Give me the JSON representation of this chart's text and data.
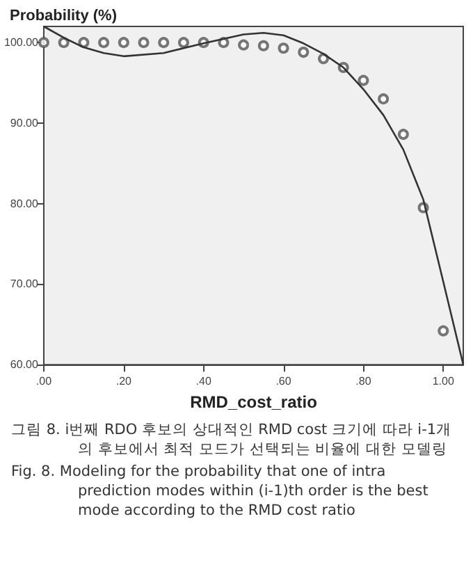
{
  "chart_data": {
    "type": "scatter",
    "ylabel": "Probability (%)",
    "xlabel": "RMD_cost_ratio",
    "xlim": [
      0,
      1.05
    ],
    "ylim": [
      60,
      102
    ],
    "xticks": [
      {
        "value": 0,
        "label": ".00"
      },
      {
        "value": 0.2,
        "label": ".20"
      },
      {
        "value": 0.4,
        "label": ".40"
      },
      {
        "value": 0.6,
        "label": ".60"
      },
      {
        "value": 0.8,
        "label": ".80"
      },
      {
        "value": 1,
        "label": "1.00"
      }
    ],
    "yticks": [
      {
        "value": 60,
        "label": "60.00"
      },
      {
        "value": 70,
        "label": "70.00"
      },
      {
        "value": 80,
        "label": "80.00"
      },
      {
        "value": 90,
        "label": "90.00"
      },
      {
        "value": 100,
        "label": "100.00"
      }
    ],
    "grid": false,
    "marker": "circle",
    "series": [
      {
        "color": "#555555",
        "x": [
          0,
          0.05,
          0.1,
          0.15,
          0.2,
          0.25,
          0.3,
          0.35,
          0.4,
          0.45,
          0.5,
          0.55,
          0.6,
          0.65,
          0.7,
          0.75,
          0.8,
          0.85,
          0.9,
          0.95,
          1.0
        ],
        "values": [
          100,
          100,
          100,
          100,
          100,
          100,
          100,
          100,
          100,
          100,
          99.7,
          99.6,
          99.3,
          98.8,
          98.0,
          96.9,
          95.3,
          93.0,
          88.6,
          79.5,
          64.2
        ]
      },
      {
        "type": "line",
        "color": "#333333",
        "marker": "none",
        "line_style": "solid",
        "x": [
          0,
          0.05,
          0.1,
          0.15,
          0.2,
          0.3,
          0.4,
          0.5,
          0.55,
          0.6,
          0.65,
          0.7,
          0.75,
          0.8,
          0.85,
          0.9,
          0.95,
          1.0,
          1.05
        ],
        "values": [
          102,
          100.6,
          99.4,
          98.7,
          98.3,
          98.7,
          99.9,
          101.0,
          101.2,
          100.9,
          99.9,
          98.6,
          96.9,
          94.2,
          91.0,
          86.7,
          80.5,
          70.3,
          60
        ]
      }
    ],
    "annotations": [
      "그림 8. i번째 RDO 후보의 상대적인 RMD cost 크기에 따라 i-1개의 후보에서 최적 모드가 선택되는 비율에 대한 모델링",
      "Fig. 8. Modeling for the probability that one of intra prediction modes within (i-1)th order is the best mode according to the RMD cost ratio"
    ]
  }
}
